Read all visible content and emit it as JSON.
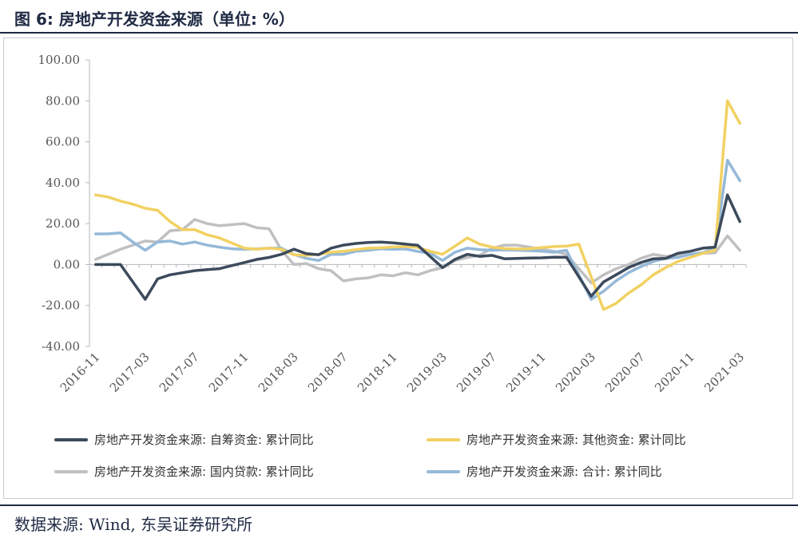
{
  "figure": {
    "title": "图 6:  房地产开发资金来源（单位: %）",
    "source": "数据来源:  Wind, 东吴证券研究所"
  },
  "chart_data": {
    "type": "line",
    "ylim": [
      -40,
      100
    ],
    "yticks": [
      "-40.00",
      "-20.00",
      "0.00",
      "20.00",
      "40.00",
      "60.00",
      "80.00",
      "100.00"
    ],
    "ytick_values": [
      -40,
      -20,
      0,
      20,
      40,
      60,
      80,
      100
    ],
    "x": [
      "2016-11",
      "2016-12",
      "2017-01",
      "2017-02",
      "2017-03",
      "2017-04",
      "2017-05",
      "2017-06",
      "2017-07",
      "2017-08",
      "2017-09",
      "2017-10",
      "2017-11",
      "2017-12",
      "2018-01",
      "2018-02",
      "2018-03",
      "2018-04",
      "2018-05",
      "2018-06",
      "2018-07",
      "2018-08",
      "2018-09",
      "2018-10",
      "2018-11",
      "2018-12",
      "2019-01",
      "2019-02",
      "2019-03",
      "2019-04",
      "2019-05",
      "2019-06",
      "2019-07",
      "2019-08",
      "2019-09",
      "2019-10",
      "2019-11",
      "2019-12",
      "2020-01",
      "2020-02",
      "2020-03",
      "2020-04",
      "2020-05",
      "2020-06",
      "2020-07",
      "2020-08",
      "2020-09",
      "2020-10",
      "2020-11",
      "2020-12",
      "2021-01",
      "2021-02",
      "2021-03"
    ],
    "xtick_labels": [
      "2016-11",
      "2017-03",
      "2017-07",
      "2017-11",
      "2018-03",
      "2018-07",
      "2018-11",
      "2019-03",
      "2019-07",
      "2019-11",
      "2020-03",
      "2020-07",
      "2020-11",
      "2021-03"
    ],
    "series": [
      {
        "name": "房地产开发资金来源: 自筹资金: 累计同比",
        "color": "#3c4a5c",
        "values": [
          0,
          0,
          0,
          null,
          -17,
          -7,
          -5,
          -4,
          -3,
          -2.5,
          -2,
          -0.5,
          1,
          2.5,
          3.5,
          5,
          7.5,
          5.3,
          4.8,
          8,
          9.5,
          10.3,
          10.8,
          11,
          10.6,
          10,
          9.4,
          null,
          -1.5,
          2.5,
          5,
          4,
          4.5,
          2.8,
          3,
          3.2,
          3.3,
          3.6,
          3.6,
          null,
          -15.5,
          -8.5,
          -5,
          -1.5,
          1,
          2.8,
          3,
          5.5,
          6.5,
          8,
          8.5,
          34,
          21
        ]
      },
      {
        "name": "房地产开发资金来源: 其他资金: 累计同比",
        "color": "#f2d162",
        "values": [
          34,
          33,
          31,
          29.5,
          27.5,
          26.5,
          21,
          17,
          17,
          14.5,
          13,
          10.5,
          8,
          7.5,
          8,
          7.5,
          4.8,
          4.5,
          5,
          6,
          6.5,
          7.3,
          8,
          8.2,
          8.6,
          8.8,
          8.4,
          6.5,
          5,
          9,
          13,
          10,
          8.5,
          7.8,
          7.6,
          7.7,
          8.3,
          8.8,
          9,
          10,
          null,
          -22,
          -19,
          -14,
          -10,
          -5,
          -1.5,
          1.5,
          3.5,
          5.5,
          7,
          80,
          69
        ]
      },
      {
        "name": "房地产开发资金来源: 国内贷款: 累计同比",
        "color": "#c0c0c2",
        "values": [
          2.5,
          5,
          7.5,
          9.5,
          11.5,
          11,
          16.5,
          17,
          22,
          20,
          19,
          19.5,
          20,
          18,
          17.5,
          7,
          0,
          0.5,
          -2,
          -3,
          -8,
          -7,
          -6.5,
          -5,
          -5.5,
          -4,
          -5,
          -3,
          -1.5,
          2,
          3.5,
          4.5,
          8,
          9.5,
          9.5,
          8.5,
          7.5,
          6.5,
          5,
          null,
          -9,
          -5,
          -2,
          0,
          3,
          5,
          4,
          4.5,
          5,
          5.5,
          5.7,
          14,
          7
        ]
      },
      {
        "name": "房地产开发资金来源: 合计: 累计同比",
        "color": "#95b9d8",
        "values": [
          15,
          15,
          15.5,
          11,
          7,
          11,
          11.5,
          10,
          11,
          9.5,
          8.5,
          7.7,
          7.5,
          7.7,
          8,
          8,
          5,
          3,
          2,
          5,
          5,
          6.5,
          7,
          7.7,
          7.5,
          7.6,
          6.4,
          5.6,
          2,
          6,
          8,
          7.3,
          7,
          7.2,
          7,
          6.8,
          6.5,
          6,
          7,
          null,
          -17,
          -13,
          -8,
          -4,
          -1,
          1.5,
          3,
          3.5,
          5,
          5.8,
          8,
          51,
          41
        ]
      }
    ],
    "legend": [
      "房地产开发资金来源: 自筹资金: 累计同比",
      "房地产开发资金来源: 其他资金: 累计同比",
      "房地产开发资金来源: 国内贷款: 累计同比",
      "房地产开发资金来源: 合计: 累计同比"
    ]
  }
}
